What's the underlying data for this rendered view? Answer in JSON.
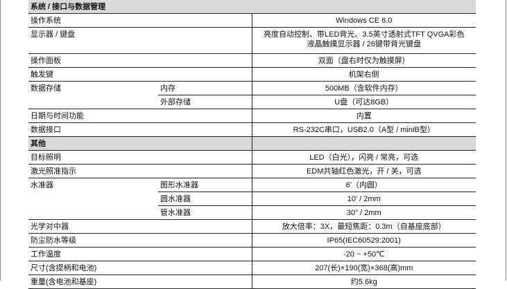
{
  "sections": [
    {
      "title": "系统 / 接口与数据管理",
      "rows": [
        {
          "label": "操作系统",
          "value": "Windows CE 6.0"
        },
        {
          "label": "显示器 / 键盘",
          "value": "亮度自动控制、带LED背光、3.5英寸透射式TFT QVGA彩色液晶触摸显示器 / 26键带背光键盘"
        },
        {
          "label": "操作面板",
          "value": "双面（盘右时仅为触摸屏）"
        },
        {
          "label": "触发键",
          "value": "机架右侧"
        },
        {
          "label": "数据存储",
          "sub": [
            {
              "label": "内存",
              "value": "500MB（含软件内存）"
            },
            {
              "label": "外部存储",
              "value": "U盘（可达8GB）"
            }
          ]
        },
        {
          "label": "日期与时间功能",
          "value": "内置"
        },
        {
          "label": "数据接口",
          "value": "RS-232C串口，USB2.0（A型 / miniB型）"
        }
      ]
    },
    {
      "title": "其他",
      "rows": [
        {
          "label": "目标照明",
          "value": "LED（白光），闪亮 / 常亮，可选"
        },
        {
          "label": "激光照准指示",
          "value": "EDM共轴红色激光，开 / 关，可选"
        },
        {
          "label": "水准器",
          "sub": [
            {
              "label": "图形水准器",
              "value": "6′（内圆）"
            },
            {
              "label": "圆水准器",
              "value": "10′ / 2mm"
            },
            {
              "label": "管水准器",
              "value": "30\" / 2mm"
            }
          ]
        },
        {
          "label": "光学对中器",
          "value": "放大倍率：3X，最短焦距：0.3m（自基座底部）"
        },
        {
          "label": "防尘防水等级",
          "value": "IP65(IEC60529:2001)"
        },
        {
          "label": "工作温度",
          "value": "-20 ~ +50℃"
        },
        {
          "label": "尺寸(含提柄和电池)",
          "value": "207(长)×190(宽)×368(高)mm"
        },
        {
          "label": "重量(含电池和基座)",
          "value": "约5.6kg"
        }
      ]
    }
  ]
}
